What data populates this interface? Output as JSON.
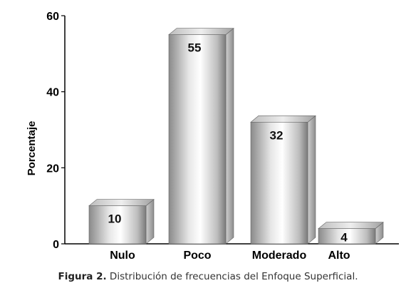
{
  "chart_data": {
    "type": "bar",
    "categories": [
      "Nulo",
      "Poco",
      "Moderado",
      "Alto"
    ],
    "values": [
      10,
      55,
      32,
      4
    ],
    "title": "",
    "xlabel": "",
    "ylabel": "Porcentaje",
    "ylim": [
      0,
      60
    ],
    "yticks": [
      0,
      20,
      40,
      60
    ],
    "grid": false,
    "legend": "none",
    "bar_style": "3d-cylinder-gray"
  },
  "caption": {
    "label": "Figura 2.",
    "text": " Distribución de frecuencias del Enfoque Superficial."
  }
}
